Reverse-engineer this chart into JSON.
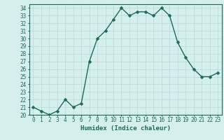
{
  "x": [
    0,
    1,
    2,
    3,
    4,
    5,
    6,
    7,
    8,
    9,
    10,
    11,
    12,
    13,
    14,
    15,
    16,
    17,
    18,
    19,
    20,
    21,
    22,
    23
  ],
  "y": [
    21.0,
    20.5,
    20.0,
    20.5,
    22.0,
    21.0,
    21.5,
    27.0,
    30.0,
    31.0,
    32.5,
    34.0,
    33.0,
    33.5,
    33.5,
    33.0,
    34.0,
    33.0,
    29.5,
    27.5,
    26.0,
    25.0,
    25.0,
    25.5
  ],
  "xlabel": "Humidex (Indice chaleur)",
  "xlim": [
    -0.5,
    23.5
  ],
  "ylim": [
    20,
    34.5
  ],
  "yticks": [
    20,
    21,
    22,
    23,
    24,
    25,
    26,
    27,
    28,
    29,
    30,
    31,
    32,
    33,
    34
  ],
  "xticks": [
    0,
    1,
    2,
    3,
    4,
    5,
    6,
    7,
    8,
    9,
    10,
    11,
    12,
    13,
    14,
    15,
    16,
    17,
    18,
    19,
    20,
    21,
    22,
    23
  ],
  "line_color": "#1a6b5a",
  "marker_color": "#1a6b5a",
  "bg_color": "#d5eeee",
  "grid_color": "#b8d8d8",
  "tick_color": "#1a6b5a",
  "label_color": "#1a6b5a",
  "font_size_ticks": 5.5,
  "font_size_label": 6.5,
  "line_width": 1.0,
  "marker_size": 2.5
}
